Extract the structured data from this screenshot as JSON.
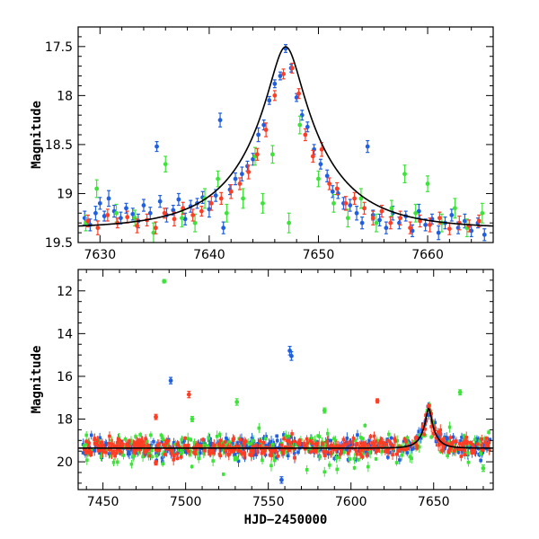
{
  "chart_data": [
    {
      "type": "scatter",
      "title": "",
      "xlabel": "",
      "ylabel": "Magnitude",
      "xlim": [
        7628,
        7666
      ],
      "ylim": [
        19.5,
        17.3
      ],
      "y_inverted": true,
      "xticks": [
        7630,
        7640,
        7650,
        7660
      ],
      "yticks": [
        17.5,
        18,
        18.5,
        19,
        19.5
      ],
      "xtick_labels": [
        "7630",
        "7640",
        "7650",
        "7660"
      ],
      "ytick_labels": [
        "17.5",
        "18",
        "18.5",
        "19",
        "19.5"
      ],
      "grid": false,
      "legend": "none",
      "model_curve": {
        "color": "#000000",
        "t0": 7647.0,
        "u0": 0.183,
        "tE": 7.3,
        "baseline_mag": 19.36
      },
      "series": [
        {
          "color": "#1f5fe0",
          "points": [
            [
              7628.6,
              19.25,
              0.07
            ],
            [
              7629.1,
              19.32,
              0.06
            ],
            [
              7629.6,
              19.2,
              0.07
            ],
            [
              7630.0,
              19.1,
              0.06
            ],
            [
              7630.4,
              19.23,
              0.05
            ],
            [
              7630.8,
              19.05,
              0.08
            ],
            [
              7631.3,
              19.18,
              0.06
            ],
            [
              7631.9,
              19.25,
              0.06
            ],
            [
              7632.4,
              19.15,
              0.05
            ],
            [
              7633.0,
              19.21,
              0.06
            ],
            [
              7633.5,
              19.28,
              0.07
            ],
            [
              7634.0,
              19.12,
              0.06
            ],
            [
              7634.6,
              19.2,
              0.06
            ],
            [
              7635.2,
              18.52,
              0.05
            ],
            [
              7635.5,
              19.08,
              0.06
            ],
            [
              7636.1,
              19.22,
              0.07
            ],
            [
              7636.7,
              19.17,
              0.05
            ],
            [
              7637.2,
              19.06,
              0.06
            ],
            [
              7637.8,
              19.26,
              0.06
            ],
            [
              7638.3,
              19.13,
              0.06
            ],
            [
              7638.9,
              19.1,
              0.05
            ],
            [
              7639.4,
              19.04,
              0.06
            ],
            [
              7640.0,
              19.16,
              0.08
            ],
            [
              7640.6,
              19.02,
              0.06
            ],
            [
              7641.0,
              18.25,
              0.07
            ],
            [
              7641.3,
              19.35,
              0.06
            ],
            [
              7641.9,
              18.96,
              0.05
            ],
            [
              7642.4,
              18.85,
              0.06
            ],
            [
              7643.0,
              18.8,
              0.07
            ],
            [
              7643.5,
              18.72,
              0.05
            ],
            [
              7644.0,
              18.65,
              0.06
            ],
            [
              7644.5,
              18.4,
              0.07
            ],
            [
              7645.0,
              18.3,
              0.05
            ],
            [
              7645.5,
              18.05,
              0.04
            ],
            [
              7646.0,
              17.88,
              0.04
            ],
            [
              7646.5,
              17.8,
              0.04
            ],
            [
              7647.0,
              17.52,
              0.04
            ],
            [
              7647.5,
              17.72,
              0.04
            ],
            [
              7648.0,
              18.02,
              0.04
            ],
            [
              7648.5,
              18.2,
              0.05
            ],
            [
              7649.0,
              18.32,
              0.05
            ],
            [
              7649.6,
              18.55,
              0.05
            ],
            [
              7650.2,
              18.7,
              0.05
            ],
            [
              7650.8,
              18.82,
              0.06
            ],
            [
              7651.3,
              18.98,
              0.06
            ],
            [
              7651.8,
              19.0,
              0.05
            ],
            [
              7652.3,
              19.1,
              0.06
            ],
            [
              7652.9,
              19.12,
              0.06
            ],
            [
              7653.5,
              19.2,
              0.07
            ],
            [
              7654.0,
              19.3,
              0.06
            ],
            [
              7654.5,
              18.52,
              0.06
            ],
            [
              7655.0,
              19.22,
              0.05
            ],
            [
              7655.6,
              19.27,
              0.06
            ],
            [
              7656.2,
              19.35,
              0.06
            ],
            [
              7656.8,
              19.2,
              0.07
            ],
            [
              7657.4,
              19.3,
              0.06
            ],
            [
              7658.0,
              19.23,
              0.05
            ],
            [
              7658.6,
              19.38,
              0.06
            ],
            [
              7659.2,
              19.18,
              0.07
            ],
            [
              7659.8,
              19.32,
              0.06
            ],
            [
              7660.4,
              19.26,
              0.05
            ],
            [
              7661.0,
              19.4,
              0.07
            ],
            [
              7661.6,
              19.3,
              0.06
            ],
            [
              7662.2,
              19.22,
              0.06
            ],
            [
              7662.8,
              19.35,
              0.06
            ],
            [
              7663.4,
              19.28,
              0.07
            ],
            [
              7664.0,
              19.38,
              0.06
            ],
            [
              7664.6,
              19.3,
              0.05
            ],
            [
              7665.2,
              19.42,
              0.06
            ]
          ]
        },
        {
          "color": "#ff3d25",
          "points": [
            [
              7628.9,
              19.28,
              0.06
            ],
            [
              7629.8,
              19.35,
              0.07
            ],
            [
              7630.7,
              19.22,
              0.06
            ],
            [
              7631.6,
              19.3,
              0.05
            ],
            [
              7632.5,
              19.24,
              0.06
            ],
            [
              7633.4,
              19.33,
              0.07
            ],
            [
              7634.3,
              19.27,
              0.06
            ],
            [
              7635.1,
              19.35,
              0.06
            ],
            [
              7635.9,
              19.2,
              0.05
            ],
            [
              7636.8,
              19.26,
              0.07
            ],
            [
              7637.6,
              19.15,
              0.06
            ],
            [
              7638.5,
              19.22,
              0.06
            ],
            [
              7639.3,
              19.18,
              0.05
            ],
            [
              7640.2,
              19.1,
              0.07
            ],
            [
              7641.1,
              19.05,
              0.06
            ],
            [
              7642.0,
              18.98,
              0.07
            ],
            [
              7642.8,
              18.9,
              0.06
            ],
            [
              7643.6,
              18.78,
              0.07
            ],
            [
              7644.4,
              18.6,
              0.06
            ],
            [
              7645.2,
              18.35,
              0.07
            ],
            [
              7646.0,
              18.0,
              0.05
            ],
            [
              7646.8,
              17.78,
              0.05
            ],
            [
              7647.6,
              17.72,
              0.05
            ],
            [
              7648.2,
              17.98,
              0.05
            ],
            [
              7648.8,
              18.4,
              0.06
            ],
            [
              7649.5,
              18.62,
              0.06
            ],
            [
              7650.3,
              18.55,
              0.07
            ],
            [
              7651.0,
              18.9,
              0.06
            ],
            [
              7651.7,
              18.95,
              0.06
            ],
            [
              7652.5,
              19.1,
              0.07
            ],
            [
              7653.3,
              19.05,
              0.06
            ],
            [
              7654.2,
              19.15,
              0.06
            ],
            [
              7655.0,
              19.25,
              0.07
            ],
            [
              7655.8,
              19.18,
              0.06
            ],
            [
              7656.6,
              19.3,
              0.06
            ],
            [
              7657.5,
              19.25,
              0.07
            ],
            [
              7658.4,
              19.35,
              0.06
            ],
            [
              7659.3,
              19.28,
              0.06
            ],
            [
              7660.2,
              19.32,
              0.07
            ],
            [
              7661.1,
              19.25,
              0.06
            ],
            [
              7662.0,
              19.36,
              0.06
            ],
            [
              7662.9,
              19.3,
              0.07
            ],
            [
              7663.8,
              19.33,
              0.06
            ],
            [
              7664.7,
              19.28,
              0.06
            ]
          ]
        },
        {
          "color": "#3ee33a",
          "points": [
            [
              7628.7,
              19.3,
              0.08
            ],
            [
              7629.7,
              18.95,
              0.09
            ],
            [
              7631.5,
              19.2,
              0.09
            ],
            [
              7633.2,
              19.25,
              0.08
            ],
            [
              7634.9,
              19.4,
              0.1
            ],
            [
              7636.0,
              18.7,
              0.08
            ],
            [
              7637.5,
              19.25,
              0.09
            ],
            [
              7638.7,
              19.3,
              0.09
            ],
            [
              7639.6,
              19.05,
              0.1
            ],
            [
              7640.8,
              18.85,
              0.08
            ],
            [
              7641.6,
              19.2,
              0.09
            ],
            [
              7643.1,
              19.05,
              0.1
            ],
            [
              7644.2,
              18.62,
              0.09
            ],
            [
              7644.9,
              19.1,
              0.1
            ],
            [
              7645.8,
              18.6,
              0.09
            ],
            [
              7647.3,
              19.3,
              0.1
            ],
            [
              7648.3,
              18.3,
              0.09
            ],
            [
              7650.0,
              18.85,
              0.08
            ],
            [
              7651.4,
              19.1,
              0.09
            ],
            [
              7652.7,
              19.25,
              0.09
            ],
            [
              7653.9,
              19.05,
              0.1
            ],
            [
              7655.3,
              19.3,
              0.09
            ],
            [
              7656.7,
              19.15,
              0.08
            ],
            [
              7657.9,
              18.8,
              0.09
            ],
            [
              7658.9,
              19.2,
              0.09
            ],
            [
              7660.0,
              18.9,
              0.08
            ],
            [
              7661.3,
              19.3,
              0.09
            ],
            [
              7662.5,
              19.15,
              0.1
            ],
            [
              7663.6,
              19.35,
              0.09
            ],
            [
              7665.0,
              19.2,
              0.1
            ]
          ]
        }
      ]
    },
    {
      "type": "scatter",
      "title": "",
      "xlabel": "HJD−2450000",
      "ylabel": "Magnitude",
      "xlim": [
        7435,
        7686
      ],
      "ylim": [
        21.3,
        11.0
      ],
      "y_inverted": true,
      "xticks": [
        7450,
        7500,
        7550,
        7600,
        7650
      ],
      "yticks": [
        12,
        14,
        16,
        18,
        20
      ],
      "xtick_labels": [
        "7450",
        "7500",
        "7550",
        "7600",
        "7650"
      ],
      "ytick_labels": [
        "12",
        "14",
        "16",
        "18",
        "20"
      ],
      "grid": false,
      "legend": "none",
      "model_curve": {
        "color": "#000000",
        "t0": 7647.0,
        "u0": 0.183,
        "tE": 7.3,
        "baseline_mag": 19.36
      },
      "outliers": [
        {
          "color": "#3ee33a",
          "x": 7487,
          "y": 11.55,
          "err": 0.08
        },
        {
          "color": "#1f5fe0",
          "x": 7491,
          "y": 16.2,
          "err": 0.15
        },
        {
          "color": "#1f5fe0",
          "x": 7563,
          "y": 14.8,
          "err": 0.2
        },
        {
          "color": "#1f5fe0",
          "x": 7564,
          "y": 15.05,
          "err": 0.2
        },
        {
          "color": "#1f5fe0",
          "x": 7558,
          "y": 20.85,
          "err": 0.15
        },
        {
          "color": "#ff3d25",
          "x": 7502,
          "y": 16.85,
          "err": 0.15
        },
        {
          "color": "#ff3d25",
          "x": 7482,
          "y": 17.9,
          "err": 0.12
        },
        {
          "color": "#ff3d25",
          "x": 7616,
          "y": 17.15,
          "err": 0.1
        },
        {
          "color": "#3ee33a",
          "x": 7531,
          "y": 17.2,
          "err": 0.15
        },
        {
          "color": "#3ee33a",
          "x": 7504,
          "y": 18.0,
          "err": 0.12
        },
        {
          "color": "#3ee33a",
          "x": 7584,
          "y": 17.6,
          "err": 0.12
        },
        {
          "color": "#3ee33a",
          "x": 7666,
          "y": 16.75,
          "err": 0.12
        },
        {
          "color": "#3ee33a",
          "x": 7680,
          "y": 20.3,
          "err": 0.15
        },
        {
          "color": "#3ee33a",
          "x": 7530,
          "y": 19.85,
          "err": 0.1
        },
        {
          "color": "#ff3d25",
          "x": 7482,
          "y": 20.05,
          "err": 0.1
        }
      ],
      "series_colors": [
        "#1f5fe0",
        "#3ee33a",
        "#ff3d25"
      ]
    }
  ]
}
